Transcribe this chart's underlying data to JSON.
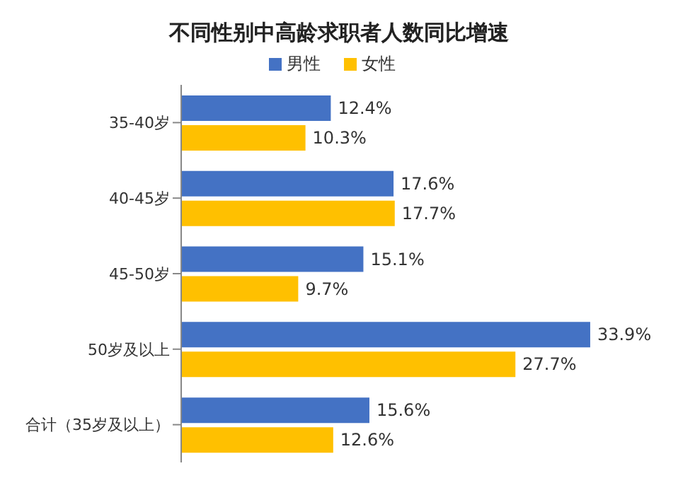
{
  "chart_data": {
    "type": "bar",
    "orientation": "horizontal",
    "title": "不同性别中高龄求职者人数同比增速",
    "categories": [
      "35-40岁",
      "40-45岁",
      "45-50岁",
      "50岁及以上",
      "合计（35岁及以上）"
    ],
    "series": [
      {
        "name": "男性",
        "color": "#4472c4",
        "values": [
          12.4,
          17.6,
          15.1,
          33.9,
          15.6
        ],
        "value_labels": [
          "12.4%",
          "17.6%",
          "15.1%",
          "33.9%",
          "15.6%"
        ]
      },
      {
        "name": "女性",
        "color": "#ffc000",
        "values": [
          10.3,
          17.7,
          9.7,
          27.7,
          12.6
        ],
        "value_labels": [
          "10.3%",
          "17.7%",
          "9.7%",
          "27.7%",
          "12.6%"
        ]
      }
    ],
    "legend": "top",
    "grid": false,
    "tick_labels": "y"
  }
}
